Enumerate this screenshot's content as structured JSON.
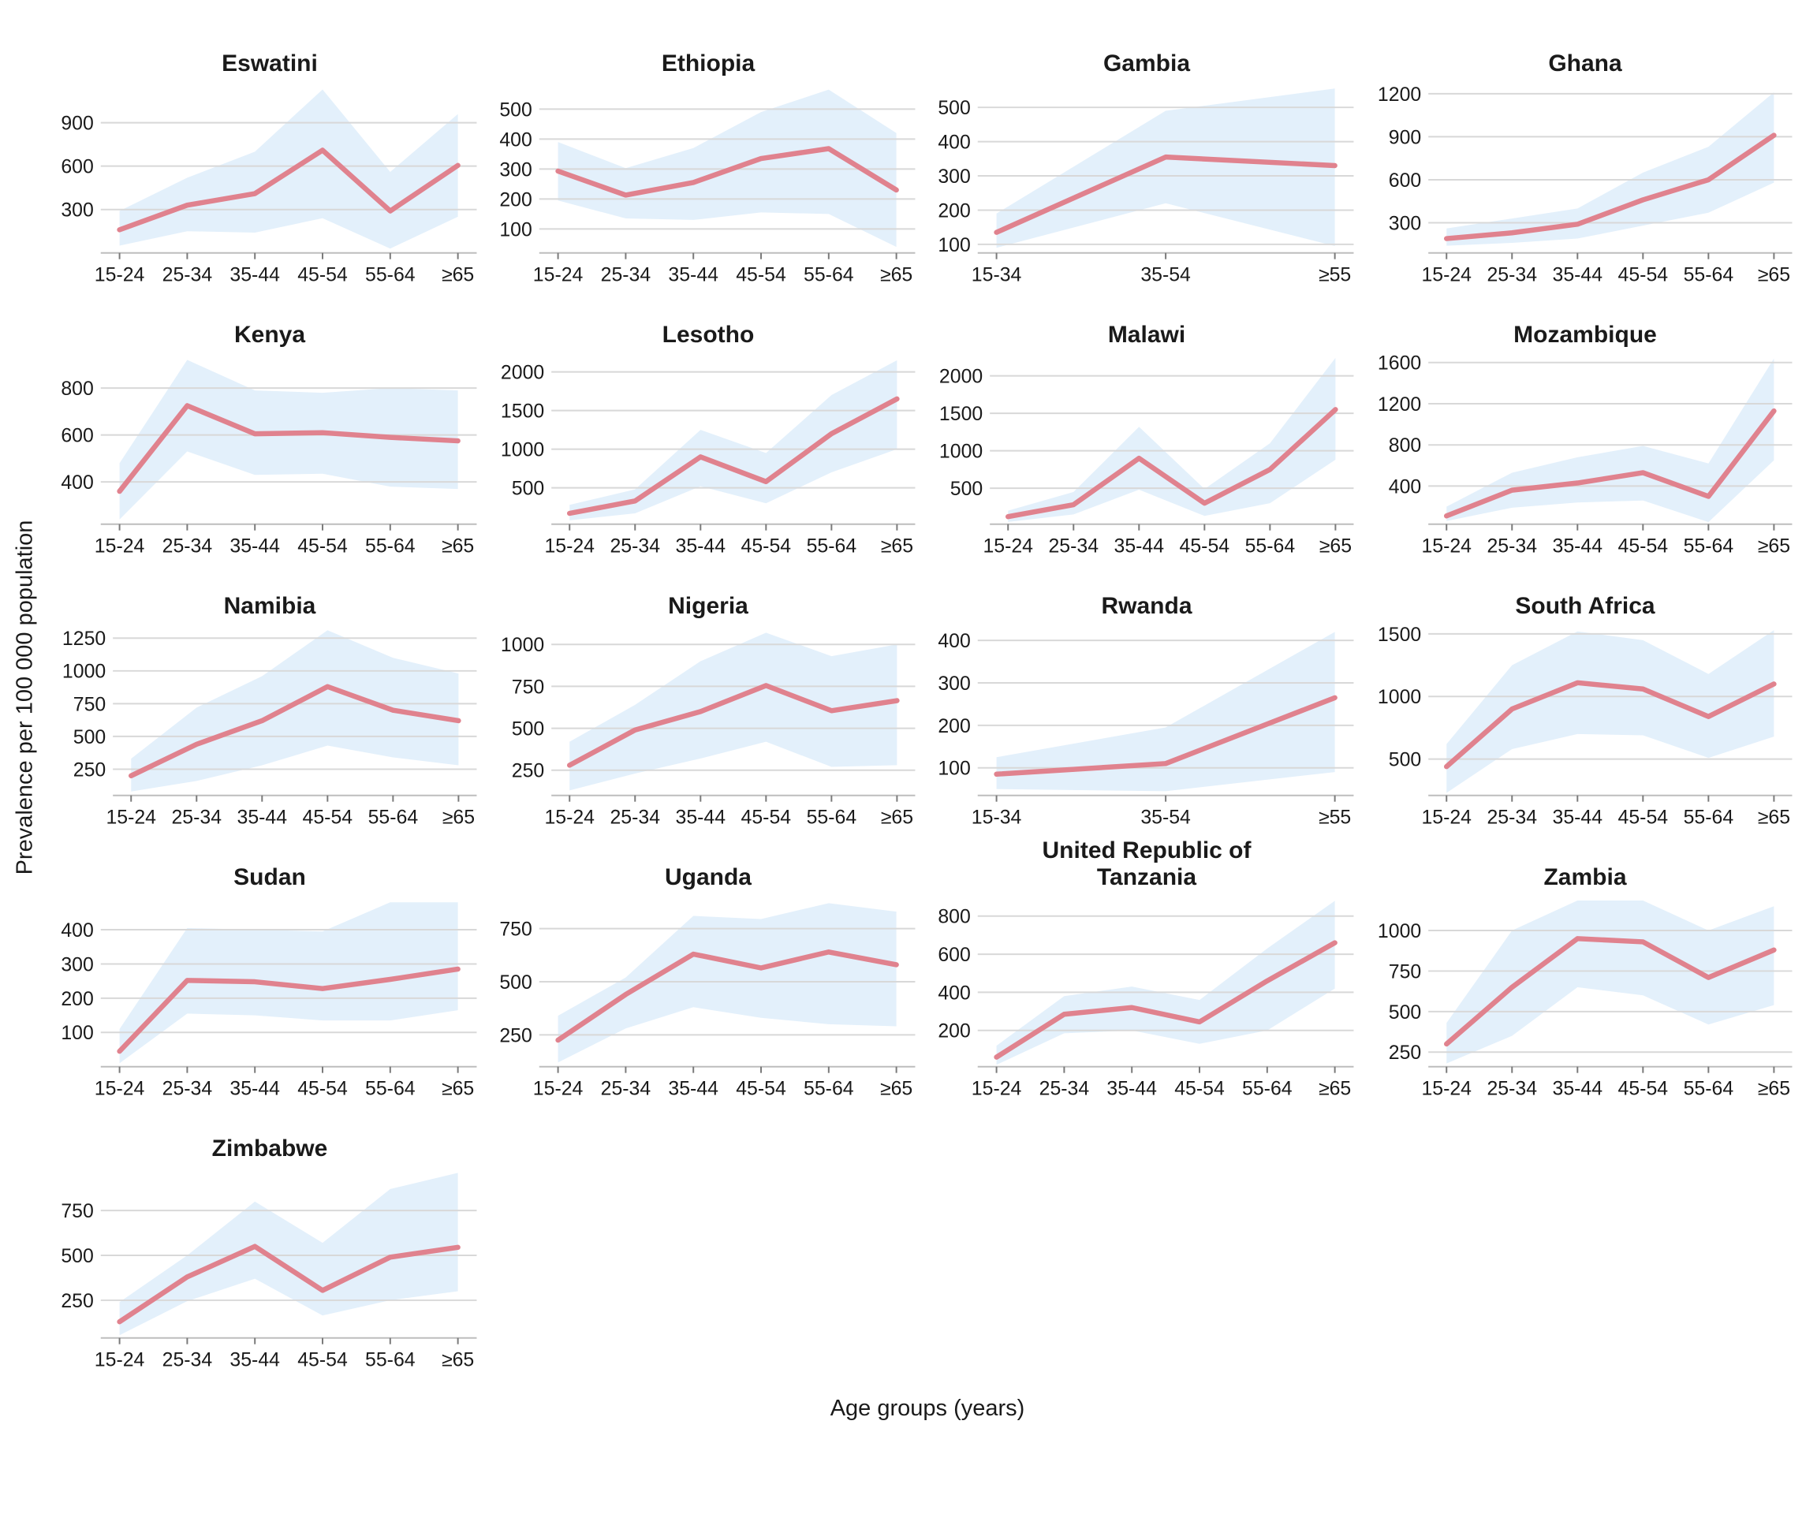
{
  "figure": {
    "ylabel": "Prevalence per 100 000 population",
    "xlabel": "Age groups (years)",
    "colors": {
      "line": "#e0828e",
      "band": "#e3f0fb",
      "grid": "#d8d8d8",
      "axis": "#bdbdbd",
      "tick": "#7a7a7a",
      "text": "#1a1a1a"
    }
  },
  "chart_data": [
    {
      "type": "line",
      "title": "Eswatini",
      "categories": [
        "15-24",
        "25-34",
        "35-44",
        "45-54",
        "55-64",
        "≥65"
      ],
      "yticks": [
        300,
        600,
        900
      ],
      "ylim": [
        0,
        1160
      ],
      "series": [
        {
          "name": "estimate",
          "values": [
            160,
            330,
            410,
            710,
            290,
            605
          ]
        },
        {
          "name": "lower",
          "values": [
            50,
            150,
            140,
            240,
            30,
            250
          ]
        },
        {
          "name": "upper",
          "values": [
            290,
            520,
            700,
            1130,
            560,
            960
          ]
        }
      ]
    },
    {
      "type": "line",
      "title": "Ethiopia",
      "categories": [
        "15-24",
        "25-34",
        "35-44",
        "45-54",
        "55-64",
        "≥65"
      ],
      "yticks": [
        100,
        200,
        300,
        400,
        500
      ],
      "ylim": [
        20,
        580
      ],
      "series": [
        {
          "name": "estimate",
          "values": [
            293,
            213,
            255,
            335,
            368,
            230
          ]
        },
        {
          "name": "lower",
          "values": [
            195,
            135,
            130,
            155,
            150,
            40
          ]
        },
        {
          "name": "upper",
          "values": [
            390,
            303,
            370,
            490,
            565,
            420
          ]
        }
      ]
    },
    {
      "type": "line",
      "title": "Gambia",
      "categories": [
        "15-34",
        "35-54",
        "≥55"
      ],
      "yticks": [
        100,
        200,
        300,
        400,
        500
      ],
      "ylim": [
        75,
        565
      ],
      "series": [
        {
          "name": "estimate",
          "values": [
            135,
            355,
            330
          ]
        },
        {
          "name": "lower",
          "values": [
            90,
            220,
            95
          ]
        },
        {
          "name": "upper",
          "values": [
            190,
            490,
            555
          ]
        }
      ]
    },
    {
      "type": "line",
      "title": "Ghana",
      "categories": [
        "15-24",
        "25-34",
        "35-44",
        "45-54",
        "55-64",
        "≥65"
      ],
      "yticks": [
        300,
        600,
        900,
        1200
      ],
      "ylim": [
        90,
        1260
      ],
      "series": [
        {
          "name": "estimate",
          "values": [
            190,
            230,
            290,
            460,
            600,
            910
          ]
        },
        {
          "name": "lower",
          "values": [
            140,
            160,
            190,
            280,
            370,
            580
          ]
        },
        {
          "name": "upper",
          "values": [
            260,
            330,
            400,
            650,
            830,
            1210
          ]
        }
      ]
    },
    {
      "type": "line",
      "title": "Kenya",
      "categories": [
        "15-24",
        "25-34",
        "35-44",
        "45-54",
        "55-64",
        "≥65"
      ],
      "yticks": [
        400,
        600,
        800
      ],
      "ylim": [
        220,
        935
      ],
      "series": [
        {
          "name": "estimate",
          "values": [
            360,
            725,
            605,
            610,
            590,
            575
          ]
        },
        {
          "name": "lower",
          "values": [
            240,
            530,
            430,
            435,
            380,
            370
          ]
        },
        {
          "name": "upper",
          "values": [
            480,
            920,
            790,
            780,
            800,
            790
          ]
        }
      ]
    },
    {
      "type": "line",
      "title": "Lesotho",
      "categories": [
        "15-24",
        "25-34",
        "35-44",
        "45-54",
        "55-64",
        "≥65"
      ],
      "yticks": [
        500,
        1000,
        1500,
        2000
      ],
      "ylim": [
        30,
        2200
      ],
      "series": [
        {
          "name": "estimate",
          "values": [
            170,
            330,
            900,
            580,
            1200,
            1650
          ]
        },
        {
          "name": "lower",
          "values": [
            80,
            170,
            520,
            300,
            700,
            1000
          ]
        },
        {
          "name": "upper",
          "values": [
            280,
            480,
            1250,
            950,
            1700,
            2150
          ]
        }
      ]
    },
    {
      "type": "line",
      "title": "Malawi",
      "categories": [
        "15-24",
        "25-34",
        "35-44",
        "45-54",
        "55-64",
        "≥65"
      ],
      "yticks": [
        500,
        1000,
        1500,
        2000
      ],
      "ylim": [
        20,
        2260
      ],
      "series": [
        {
          "name": "estimate",
          "values": [
            120,
            280,
            900,
            300,
            750,
            1550
          ]
        },
        {
          "name": "lower",
          "values": [
            50,
            150,
            480,
            130,
            300,
            880
          ]
        },
        {
          "name": "upper",
          "values": [
            200,
            450,
            1320,
            490,
            1100,
            2240
          ]
        }
      ]
    },
    {
      "type": "line",
      "title": "Mozambique",
      "categories": [
        "15-24",
        "25-34",
        "35-44",
        "45-54",
        "55-64",
        "≥65"
      ],
      "yticks": [
        400,
        800,
        1200,
        1600
      ],
      "ylim": [
        30,
        1660
      ],
      "series": [
        {
          "name": "estimate",
          "values": [
            110,
            360,
            430,
            530,
            300,
            1130
          ]
        },
        {
          "name": "lower",
          "values": [
            60,
            190,
            240,
            260,
            50,
            650
          ]
        },
        {
          "name": "upper",
          "values": [
            200,
            530,
            680,
            790,
            620,
            1640
          ]
        }
      ]
    },
    {
      "type": "line",
      "title": "Namibia",
      "categories": [
        "15-24",
        "25-34",
        "35-44",
        "45-54",
        "55-64",
        "≥65"
      ],
      "yticks": [
        250,
        500,
        750,
        1000,
        1250
      ],
      "ylim": [
        50,
        1330
      ],
      "series": [
        {
          "name": "estimate",
          "values": [
            200,
            440,
            620,
            880,
            700,
            620
          ]
        },
        {
          "name": "lower",
          "values": [
            80,
            160,
            280,
            430,
            340,
            280
          ]
        },
        {
          "name": "upper",
          "values": [
            330,
            720,
            960,
            1310,
            1100,
            980
          ]
        }
      ]
    },
    {
      "type": "line",
      "title": "Nigeria",
      "categories": [
        "15-24",
        "25-34",
        "35-44",
        "45-54",
        "55-64",
        "≥65"
      ],
      "yticks": [
        250,
        500,
        750,
        1000
      ],
      "ylim": [
        100,
        1100
      ],
      "series": [
        {
          "name": "estimate",
          "values": [
            280,
            490,
            600,
            755,
            605,
            665
          ]
        },
        {
          "name": "lower",
          "values": [
            130,
            230,
            320,
            420,
            270,
            280
          ]
        },
        {
          "name": "upper",
          "values": [
            420,
            640,
            900,
            1070,
            930,
            1000
          ]
        }
      ]
    },
    {
      "type": "line",
      "title": "Rwanda",
      "categories": [
        "15-34",
        "35-54",
        "≥55"
      ],
      "yticks": [
        100,
        200,
        300,
        400
      ],
      "ylim": [
        35,
        430
      ],
      "series": [
        {
          "name": "estimate",
          "values": [
            85,
            110,
            265
          ]
        },
        {
          "name": "lower",
          "values": [
            50,
            45,
            90
          ]
        },
        {
          "name": "upper",
          "values": [
            125,
            195,
            420
          ]
        }
      ]
    },
    {
      "type": "line",
      "title": "South Africa",
      "categories": [
        "15-24",
        "25-34",
        "35-44",
        "45-54",
        "55-64",
        "≥65"
      ],
      "yticks": [
        500,
        1000,
        1500
      ],
      "ylim": [
        210,
        1550
      ],
      "series": [
        {
          "name": "estimate",
          "values": [
            440,
            900,
            1110,
            1060,
            840,
            1100
          ]
        },
        {
          "name": "lower",
          "values": [
            230,
            580,
            700,
            690,
            510,
            680
          ]
        },
        {
          "name": "upper",
          "values": [
            620,
            1250,
            1520,
            1450,
            1180,
            1530
          ]
        }
      ]
    },
    {
      "type": "line",
      "title": "Sudan",
      "categories": [
        "15-24",
        "25-34",
        "35-44",
        "45-54",
        "55-64",
        "≥65"
      ],
      "yticks": [
        100,
        200,
        300,
        400
      ],
      "ylim": [
        0,
        490
      ],
      "series": [
        {
          "name": "estimate",
          "values": [
            45,
            252,
            248,
            228,
            255,
            285
          ]
        },
        {
          "name": "lower",
          "values": [
            10,
            155,
            150,
            135,
            135,
            165
          ]
        },
        {
          "name": "upper",
          "values": [
            110,
            405,
            400,
            395,
            480,
            480
          ]
        }
      ]
    },
    {
      "type": "line",
      "title": "Uganda",
      "categories": [
        "15-24",
        "25-34",
        "35-44",
        "45-54",
        "55-64",
        "≥65"
      ],
      "yticks": [
        250,
        500,
        750
      ],
      "ylim": [
        100,
        890
      ],
      "series": [
        {
          "name": "estimate",
          "values": [
            225,
            440,
            630,
            565,
            640,
            580
          ]
        },
        {
          "name": "lower",
          "values": [
            120,
            280,
            380,
            330,
            300,
            290
          ]
        },
        {
          "name": "upper",
          "values": [
            340,
            520,
            810,
            795,
            870,
            830
          ]
        }
      ]
    },
    {
      "type": "line",
      "title": "United Republic of Tanzania",
      "categories": [
        "15-24",
        "25-34",
        "35-44",
        "45-54",
        "55-64",
        "≥65"
      ],
      "yticks": [
        200,
        400,
        600,
        800
      ],
      "ylim": [
        10,
        890
      ],
      "series": [
        {
          "name": "estimate",
          "values": [
            60,
            285,
            320,
            245,
            460,
            660
          ]
        },
        {
          "name": "lower",
          "values": [
            20,
            185,
            200,
            130,
            200,
            420
          ]
        },
        {
          "name": "upper",
          "values": [
            120,
            380,
            430,
            360,
            630,
            880
          ]
        }
      ]
    },
    {
      "type": "line",
      "title": "Zambia",
      "categories": [
        "15-24",
        "25-34",
        "35-44",
        "45-54",
        "55-64",
        "≥65"
      ],
      "yticks": [
        250,
        500,
        750,
        1000
      ],
      "ylim": [
        160,
        1195
      ],
      "series": [
        {
          "name": "estimate",
          "values": [
            300,
            650,
            950,
            930,
            710,
            880
          ]
        },
        {
          "name": "lower",
          "values": [
            180,
            350,
            650,
            600,
            420,
            540
          ]
        },
        {
          "name": "upper",
          "values": [
            430,
            1000,
            1185,
            1185,
            1000,
            1150
          ]
        }
      ]
    },
    {
      "type": "line",
      "title": "Zimbabwe",
      "categories": [
        "15-24",
        "25-34",
        "35-44",
        "45-54",
        "55-64",
        "≥65"
      ],
      "yticks": [
        250,
        500,
        750
      ],
      "ylim": [
        40,
        975
      ],
      "series": [
        {
          "name": "estimate",
          "values": [
            130,
            380,
            550,
            305,
            490,
            545
          ]
        },
        {
          "name": "lower",
          "values": [
            55,
            245,
            370,
            165,
            250,
            300
          ]
        },
        {
          "name": "upper",
          "values": [
            240,
            500,
            800,
            570,
            870,
            960
          ]
        }
      ]
    }
  ]
}
